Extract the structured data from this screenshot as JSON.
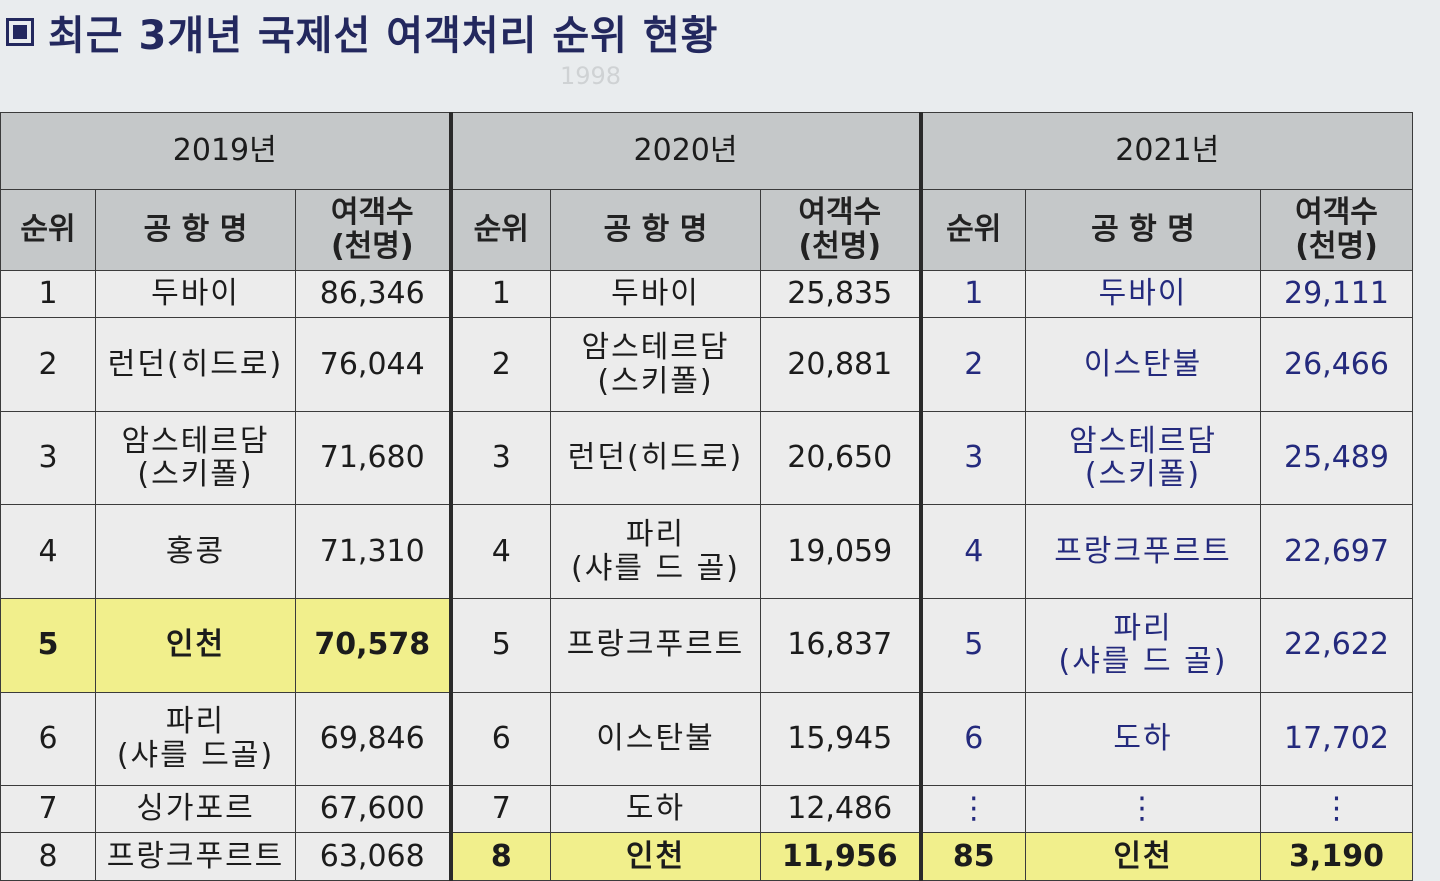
{
  "title": "최근 3개년 국제선 여객처리 순위 현황",
  "background_text": "1998",
  "colors": {
    "highlight": "#f1ef8c",
    "header_bg": "#c5c8c9",
    "title": "#23285e",
    "text_2021": "#242a7d"
  },
  "icon": "square-bullet-icon",
  "years": [
    "2019년",
    "2020년",
    "2021년"
  ],
  "columns": {
    "rank": "순위",
    "airport": "공 항 명",
    "passengers_line1": "여객수",
    "passengers_line2": "(천명)"
  },
  "rows": [
    {
      "y2019": {
        "rank": "1",
        "name": "두바이",
        "pax": "86,346"
      },
      "y2020": {
        "rank": "1",
        "name": "두바이",
        "pax": "25,835"
      },
      "y2021": {
        "rank": "1",
        "name": "두바이",
        "pax": "29,111"
      }
    },
    {
      "y2019": {
        "rank": "2",
        "name": "런던(히드로)",
        "pax": "76,044"
      },
      "y2020": {
        "rank": "2",
        "name": "암스테르담\n(스키폴)",
        "pax": "20,881"
      },
      "y2021": {
        "rank": "2",
        "name": "이스탄불",
        "pax": "26,466"
      }
    },
    {
      "y2019": {
        "rank": "3",
        "name": "암스테르담\n(스키폴)",
        "pax": "71,680"
      },
      "y2020": {
        "rank": "3",
        "name": "런던(히드로)",
        "pax": "20,650"
      },
      "y2021": {
        "rank": "3",
        "name": "암스테르담\n(스키폴)",
        "pax": "25,489"
      }
    },
    {
      "y2019": {
        "rank": "4",
        "name": "홍콩",
        "pax": "71,310"
      },
      "y2020": {
        "rank": "4",
        "name": "파리\n(샤를 드 골)",
        "pax": "19,059"
      },
      "y2021": {
        "rank": "4",
        "name": "프랑크푸르트",
        "pax": "22,697"
      }
    },
    {
      "y2019": {
        "rank": "5",
        "name": "인천",
        "pax": "70,578",
        "highlight": true
      },
      "y2020": {
        "rank": "5",
        "name": "프랑크푸르트",
        "pax": "16,837"
      },
      "y2021": {
        "rank": "5",
        "name": "파리\n(샤를 드 골)",
        "pax": "22,622"
      }
    },
    {
      "y2019": {
        "rank": "6",
        "name": "파리\n(샤를 드골)",
        "pax": "69,846"
      },
      "y2020": {
        "rank": "6",
        "name": "이스탄불",
        "pax": "15,945"
      },
      "y2021": {
        "rank": "6",
        "name": "도하",
        "pax": "17,702"
      }
    },
    {
      "y2019": {
        "rank": "7",
        "name": "싱가포르",
        "pax": "67,600"
      },
      "y2020": {
        "rank": "7",
        "name": "도하",
        "pax": "12,486"
      },
      "y2021": {
        "rank": "⋮",
        "name": "⋮",
        "pax": "⋮"
      }
    },
    {
      "y2019": {
        "rank": "8",
        "name": "프랑크푸르트",
        "pax": "63,068"
      },
      "y2020": {
        "rank": "8",
        "name": "인천",
        "pax": "11,956",
        "highlight": true
      },
      "y2021": {
        "rank": "85",
        "name": "인천",
        "pax": "3,190",
        "highlight": true
      }
    }
  ]
}
